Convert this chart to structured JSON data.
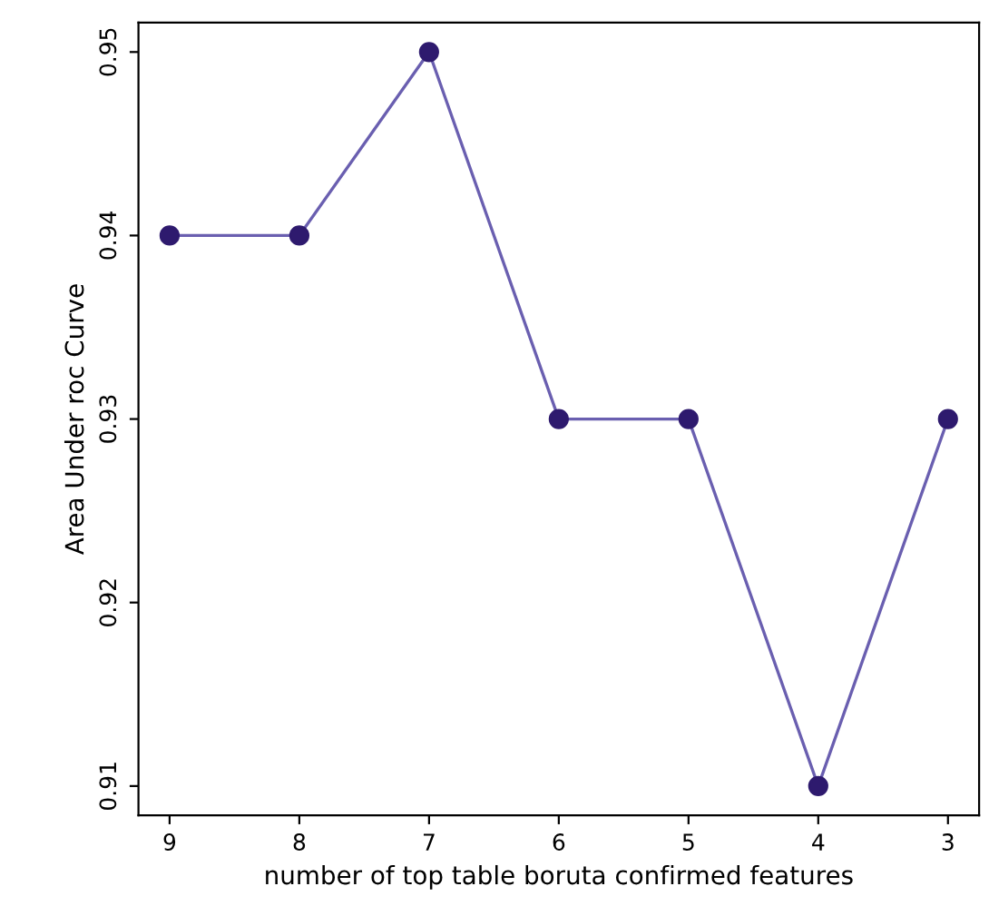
{
  "chart_data": {
    "type": "line",
    "xlabel": "number of top table boruta confirmed features",
    "ylabel": "Area Under roc Curve",
    "x": [
      9,
      8,
      7,
      6,
      5,
      4,
      3
    ],
    "series": [
      {
        "color": "#2e1a6e",
        "values": [
          0.94,
          0.94,
          0.95,
          0.93,
          0.93,
          0.91,
          0.93
        ]
      }
    ],
    "xlim": [
      9.24,
      2.76
    ],
    "ylim": [
      0.9084,
      0.9516
    ],
    "xticks": [
      9,
      8,
      7,
      6,
      5,
      4,
      3
    ],
    "yticks": [
      0.91,
      0.92,
      0.93,
      0.94,
      0.95
    ],
    "marker": "circle",
    "line_style": "solid",
    "grid": false
  }
}
